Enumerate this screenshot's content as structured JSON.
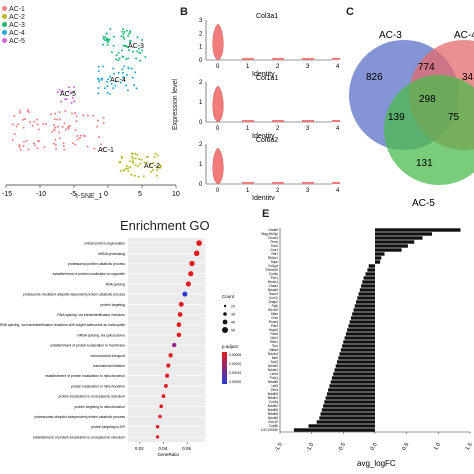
{
  "panels": {
    "B": "B",
    "C": "C",
    "E": "E"
  },
  "tsne": {
    "xlabel": "t-SNE_1",
    "xticks": [
      "-15",
      "-10",
      "-5",
      "0",
      "5",
      "10"
    ],
    "legend": [
      {
        "label": "AC-1",
        "color": "#f07f7f"
      },
      {
        "label": "AC-2",
        "color": "#b8b820"
      },
      {
        "label": "AC-3",
        "color": "#1fba7a"
      },
      {
        "label": "AC-4",
        "color": "#22a9d6"
      },
      {
        "label": "AC-5",
        "color": "#d06ad6"
      }
    ],
    "cluster_labels": [
      "AC-5",
      "AC-4",
      "AC-3",
      "AC-1",
      "AC-2"
    ]
  },
  "violin": {
    "ylabel": "Expression level",
    "genes": [
      {
        "gene": "Col3a1",
        "xlabel": "Identity",
        "yticks": [
          "0",
          "1",
          "2",
          "3"
        ],
        "xticks": [
          "0",
          "1",
          "2",
          "3",
          "4"
        ]
      },
      {
        "gene": "Col1a1",
        "xlabel": "Identity",
        "yticks": [
          "0",
          "1",
          "2"
        ],
        "xticks": [
          "0",
          "1",
          "2",
          "3",
          "4"
        ]
      },
      {
        "gene": "Col6a2",
        "xlabel": "Identity",
        "yticks": [
          "0",
          "1",
          "2"
        ],
        "xticks": [
          "0",
          "1",
          "2",
          "3",
          "4"
        ]
      }
    ]
  },
  "venn": {
    "labels": [
      "AC-3",
      "AC-4",
      "AC-5"
    ],
    "colors": [
      "#5b72c8",
      "#e36b6b",
      "#4cbb4c"
    ],
    "counts": {
      "only3": "826",
      "3and4": "774",
      "only4": "34",
      "all": "298",
      "3and5": "139",
      "4and5": "75",
      "only5": "131"
    }
  },
  "chart_data": [
    {
      "type": "scatter",
      "title": "Enrichment GO",
      "xlabel": "GeneRatio",
      "xticks": [
        "0.02",
        "0.04",
        "0.06"
      ],
      "xlim": [
        0.01,
        0.075
      ],
      "categories": [
        "mitochondrion organization",
        "mRNA processing",
        "proteasomal protein catabolic process",
        "establishment of protein localization to organelle",
        "RNA splicing",
        "proteasome-mediated ubiquitin-dependent protein catabolic process",
        "protein targeting",
        "RNA splicing, via transesterification reactions",
        "RNA splicing, via transesterification reactions with bulged adenosine as nucleophile",
        "mRNA splicing, via spliceosome",
        "establishment of protein localization to membrane",
        "mitochondrial transport",
        "translational initiation",
        "establishment of protein localization to mitochondrion",
        "protein localization to mitochondrion",
        "protein localization to endoplasmic reticulum",
        "protein targeting to mitochondrion",
        "proteasomal ubiquitin-independent protein catabolic process",
        "protein targeting to ER",
        "establishment of protein localization to endoplasmic reticulum"
      ],
      "values": [
        0.07,
        0.068,
        0.064,
        0.063,
        0.061,
        0.058,
        0.055,
        0.054,
        0.053,
        0.053,
        0.049,
        0.046,
        0.044,
        0.043,
        0.042,
        0.04,
        0.038,
        0.037,
        0.035,
        0.035
      ],
      "colors": [
        "#e31a1c",
        "#e31a1c",
        "#e31a1c",
        "#e31a1c",
        "#e31a1c",
        "#2a3bd6",
        "#e31a1c",
        "#e31a1c",
        "#e31a1c",
        "#e31a1c",
        "#9c1f8f",
        "#e31a1c",
        "#e31a1c",
        "#e31a1c",
        "#e31a1c",
        "#e31a1c",
        "#e31a1c",
        "#e31a1c",
        "#e31a1c",
        "#e31a1c"
      ],
      "legend": {
        "count_title": "Count",
        "count_items": [
          "20",
          "30",
          "40",
          "50"
        ],
        "padj_title": "p.adjust",
        "padj_items": [
          "0.00005",
          "0.00010",
          "0.00015",
          "0.00020"
        ]
      }
    },
    {
      "type": "bar",
      "xlabel": "avg_logFC",
      "xlim": [
        -1.5,
        1.5
      ],
      "xticks": [
        "-1.5",
        "-1.0",
        "-0.5",
        "0.0",
        "0.5",
        "1.0",
        "1.5"
      ],
      "categories": [
        "Ostate",
        "Mag-Hb/3pi",
        "Ctcac3",
        "Pmdr",
        "Sox4",
        "Coa1",
        "Rbl1",
        "Rbfox1",
        "Sapc",
        "Col1pd",
        "Tmem30",
        "Cox6c",
        "Pvrl1",
        "Bmcn1",
        "Chaa1",
        "Ndufa2",
        "Sacu3",
        "Cox7c",
        "Dnap2",
        "Ppib",
        "Mt-nd3",
        "Stbin",
        "Creb",
        "Rsnk4",
        "Pdk3",
        "Hspc0",
        "Rcb6",
        "Nec2",
        "Rbfc1",
        "Tom",
        "Nlrta4",
        "Ndufv4",
        "Mrbl",
        "Sod2",
        "Ndufs3",
        "Ndufa1",
        "Lem6",
        "Prdx1",
        "Ndufa5",
        "Usf3",
        "Zfm3",
        "Ndufb9",
        "Ndufb1",
        "Cox5a",
        "Ndufb2",
        "Ndufb5",
        "Ndufb6",
        "Ndufs5",
        "Clcn10",
        "Cox8b",
        "LOC100260"
      ],
      "values": [
        1.35,
        0.9,
        0.75,
        0.62,
        0.52,
        0.42,
        0.15,
        0.1,
        0.08,
        -0.1,
        -0.12,
        -0.15,
        -0.18,
        -0.2,
        -0.22,
        -0.24,
        -0.26,
        -0.28,
        -0.3,
        -0.32,
        -0.34,
        -0.36,
        -0.38,
        -0.4,
        -0.42,
        -0.44,
        -0.46,
        -0.48,
        -0.5,
        -0.52,
        -0.54,
        -0.56,
        -0.58,
        -0.6,
        -0.62,
        -0.64,
        -0.66,
        -0.68,
        -0.7,
        -0.72,
        -0.74,
        -0.76,
        -0.78,
        -0.8,
        -0.82,
        -0.84,
        -0.86,
        -0.88,
        -0.92,
        -1.05,
        -1.28
      ]
    }
  ]
}
